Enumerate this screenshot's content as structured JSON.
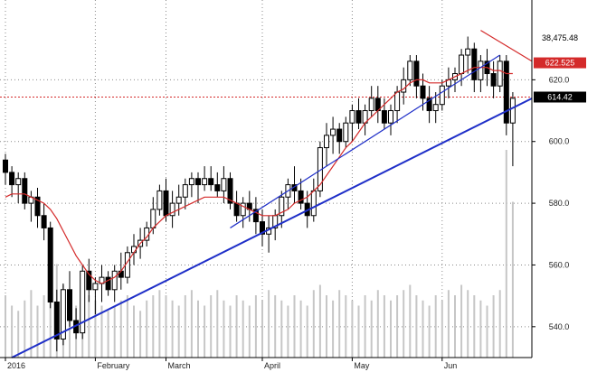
{
  "chart_data": {
    "type": "candlestick",
    "title": "",
    "xlabel": "",
    "ylabel": "",
    "ylim": [
      530,
      640
    ],
    "grid": true,
    "x_tick_labels": [
      "2016",
      "February",
      "March",
      "April",
      "May",
      "Jun"
    ],
    "y_tick_labels": [
      "540.0",
      "560.0",
      "580.0",
      "600.0",
      "620.0"
    ],
    "badges": {
      "volume": {
        "label": "38,475.48",
        "bg": "#ffffff",
        "fg": "#000000"
      },
      "ma": {
        "label": "622.525",
        "bg": "#d42a2a",
        "fg": "#ffffff"
      },
      "last": {
        "label": "614.42",
        "bg": "#000000",
        "fg": "#ffffff"
      }
    },
    "reference_level": 614.4,
    "series": [
      {
        "kind": "candles",
        "values": [
          [
            594,
            596,
            586,
            590
          ],
          [
            590,
            592,
            582,
            586
          ],
          [
            586,
            590,
            580,
            588
          ],
          [
            588,
            590,
            578,
            580
          ],
          [
            580,
            584,
            574,
            582
          ],
          [
            582,
            585,
            572,
            576
          ],
          [
            576,
            580,
            568,
            572
          ],
          [
            572,
            574,
            546,
            548
          ],
          [
            548,
            552,
            532,
            536
          ],
          [
            536,
            554,
            534,
            552
          ],
          [
            552,
            558,
            540,
            542
          ],
          [
            542,
            546,
            536,
            538
          ],
          [
            538,
            560,
            536,
            558
          ],
          [
            558,
            562,
            548,
            552
          ],
          [
            552,
            556,
            544,
            554
          ],
          [
            554,
            560,
            548,
            556
          ],
          [
            556,
            558,
            550,
            552
          ],
          [
            552,
            560,
            548,
            558
          ],
          [
            558,
            564,
            552,
            556
          ],
          [
            556,
            566,
            554,
            564
          ],
          [
            564,
            570,
            560,
            566
          ],
          [
            566,
            572,
            562,
            568
          ],
          [
            568,
            574,
            566,
            572
          ],
          [
            572,
            582,
            570,
            578
          ],
          [
            578,
            586,
            576,
            584
          ],
          [
            584,
            588,
            574,
            576
          ],
          [
            576,
            584,
            572,
            580
          ],
          [
            580,
            586,
            576,
            582
          ],
          [
            582,
            588,
            578,
            586
          ],
          [
            586,
            590,
            582,
            588
          ],
          [
            588,
            590,
            580,
            586
          ],
          [
            586,
            592,
            584,
            588
          ],
          [
            588,
            592,
            584,
            586
          ],
          [
            586,
            590,
            582,
            584
          ],
          [
            584,
            592,
            580,
            588
          ],
          [
            588,
            590,
            578,
            580
          ],
          [
            580,
            584,
            574,
            576
          ],
          [
            576,
            582,
            572,
            580
          ],
          [
            580,
            584,
            574,
            578
          ],
          [
            578,
            582,
            570,
            574
          ],
          [
            574,
            578,
            566,
            570
          ],
          [
            570,
            576,
            564,
            572
          ],
          [
            572,
            578,
            568,
            576
          ],
          [
            576,
            584,
            572,
            582
          ],
          [
            582,
            588,
            578,
            586
          ],
          [
            586,
            592,
            580,
            584
          ],
          [
            584,
            588,
            578,
            580
          ],
          [
            580,
            584,
            572,
            576
          ],
          [
            576,
            588,
            574,
            584
          ],
          [
            584,
            600,
            582,
            598
          ],
          [
            598,
            606,
            592,
            602
          ],
          [
            602,
            608,
            596,
            604
          ],
          [
            604,
            606,
            596,
            600
          ],
          [
            600,
            608,
            598,
            606
          ],
          [
            606,
            612,
            600,
            610
          ],
          [
            610,
            614,
            604,
            606
          ],
          [
            606,
            612,
            602,
            610
          ],
          [
            610,
            618,
            608,
            614
          ],
          [
            614,
            618,
            606,
            610
          ],
          [
            610,
            614,
            604,
            606
          ],
          [
            606,
            612,
            602,
            610
          ],
          [
            610,
            618,
            606,
            616
          ],
          [
            616,
            624,
            612,
            620
          ],
          [
            620,
            628,
            618,
            626
          ],
          [
            626,
            628,
            614,
            618
          ],
          [
            618,
            622,
            610,
            614
          ],
          [
            614,
            618,
            606,
            610
          ],
          [
            610,
            616,
            606,
            612
          ],
          [
            612,
            620,
            610,
            618
          ],
          [
            618,
            624,
            614,
            620
          ],
          [
            620,
            624,
            616,
            622
          ],
          [
            622,
            630,
            618,
            628
          ],
          [
            628,
            634,
            622,
            630
          ],
          [
            630,
            632,
            616,
            620
          ],
          [
            620,
            628,
            616,
            626
          ],
          [
            626,
            630,
            618,
            622
          ],
          [
            622,
            626,
            614,
            618
          ],
          [
            618,
            628,
            616,
            626
          ],
          [
            626,
            628,
            602,
            606
          ],
          [
            606,
            616,
            592,
            614
          ]
        ]
      },
      {
        "kind": "volume",
        "values": [
          12,
          10,
          9,
          11,
          13,
          10,
          12,
          15,
          18,
          14,
          11,
          10,
          13,
          12,
          11,
          10,
          9,
          10,
          11,
          12,
          10,
          9,
          11,
          12,
          13,
          12,
          11,
          10,
          12,
          13,
          11,
          10,
          12,
          13,
          11,
          10,
          12,
          11,
          10,
          12,
          11,
          13,
          12,
          11,
          10,
          12,
          11,
          10,
          13,
          14,
          12,
          11,
          13,
          12,
          11,
          10,
          12,
          11,
          13,
          12,
          11,
          12,
          13,
          14,
          12,
          11,
          10,
          12,
          11,
          13,
          12,
          14,
          13,
          12,
          11,
          10,
          12,
          13,
          40,
          30
        ]
      },
      {
        "kind": "moving_average",
        "values": [
          582,
          583,
          583,
          583,
          582,
          581,
          580,
          578,
          575,
          571,
          567,
          563,
          560,
          557,
          555,
          554,
          555,
          556,
          558,
          561,
          564,
          567,
          569,
          572,
          574,
          576,
          577,
          578,
          579,
          580,
          581,
          582,
          582,
          582,
          582,
          581,
          580,
          579,
          578,
          577,
          576,
          576,
          576,
          577,
          578,
          580,
          581,
          582,
          584,
          586,
          589,
          592,
          595,
          598,
          600,
          603,
          606,
          608,
          610,
          612,
          614,
          616,
          617,
          619,
          620,
          620,
          619,
          619,
          619,
          620,
          621,
          622,
          623,
          624,
          624,
          624,
          623,
          623,
          622,
          622
        ]
      }
    ],
    "trendlines": [
      {
        "color": "#1f2fc8",
        "from": [
          1,
          530
        ],
        "to": [
          82,
          614
        ]
      },
      {
        "color": "#1f2fc8",
        "from": [
          35,
          572
        ],
        "to": [
          77,
          628
        ]
      },
      {
        "color": "#d42a2a",
        "from": [
          74,
          636
        ],
        "to": [
          82,
          626
        ]
      }
    ]
  }
}
